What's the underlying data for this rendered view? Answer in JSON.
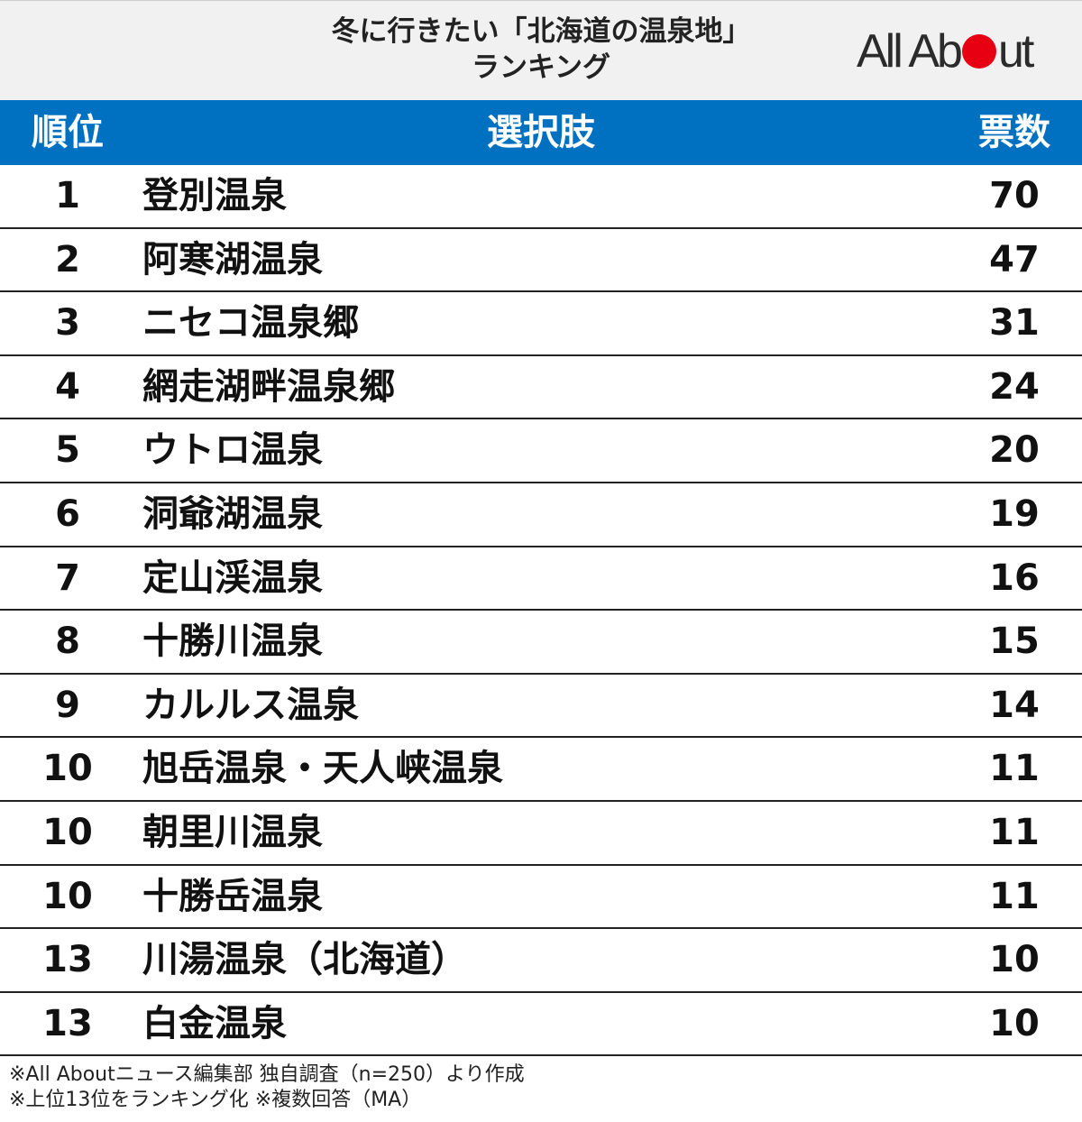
{
  "header": {
    "title_line1": "冬に行きたい「北海道の温泉地」",
    "title_line2": "ランキング",
    "logo_pre": "All Ab",
    "logo_post": "ut",
    "logo_dot_color": "#e60012"
  },
  "table": {
    "header_color": "#0070c0",
    "col_rank": "順位",
    "col_choice": "選択肢",
    "col_votes": "票数"
  },
  "chart_data": {
    "type": "table",
    "title": "冬に行きたい「北海道の温泉地」ランキング",
    "columns": [
      "順位",
      "選択肢",
      "票数"
    ],
    "rows": [
      {
        "rank": "1",
        "name": "登別温泉",
        "votes": 70
      },
      {
        "rank": "2",
        "name": "阿寒湖温泉",
        "votes": 47
      },
      {
        "rank": "3",
        "name": "ニセコ温泉郷",
        "votes": 31
      },
      {
        "rank": "4",
        "name": "網走湖畔温泉郷",
        "votes": 24
      },
      {
        "rank": "5",
        "name": "ウトロ温泉",
        "votes": 20
      },
      {
        "rank": "6",
        "name": "洞爺湖温泉",
        "votes": 19
      },
      {
        "rank": "7",
        "name": "定山渓温泉",
        "votes": 16
      },
      {
        "rank": "8",
        "name": "十勝川温泉",
        "votes": 15
      },
      {
        "rank": "9",
        "name": "カルルス温泉",
        "votes": 14
      },
      {
        "rank": "10",
        "name": "旭岳温泉・天人峡温泉",
        "votes": 11
      },
      {
        "rank": "10",
        "name": "朝里川温泉",
        "votes": 11
      },
      {
        "rank": "10",
        "name": "十勝岳温泉",
        "votes": 11
      },
      {
        "rank": "13",
        "name": "川湯温泉（北海道）",
        "votes": 10
      },
      {
        "rank": "13",
        "name": "白金温泉",
        "votes": 10
      }
    ]
  },
  "notes": {
    "line1": "※All Aboutニュース編集部 独自調査（n=250）より作成",
    "line2": "※上位13位をランキング化 ※複数回答（MA）"
  }
}
